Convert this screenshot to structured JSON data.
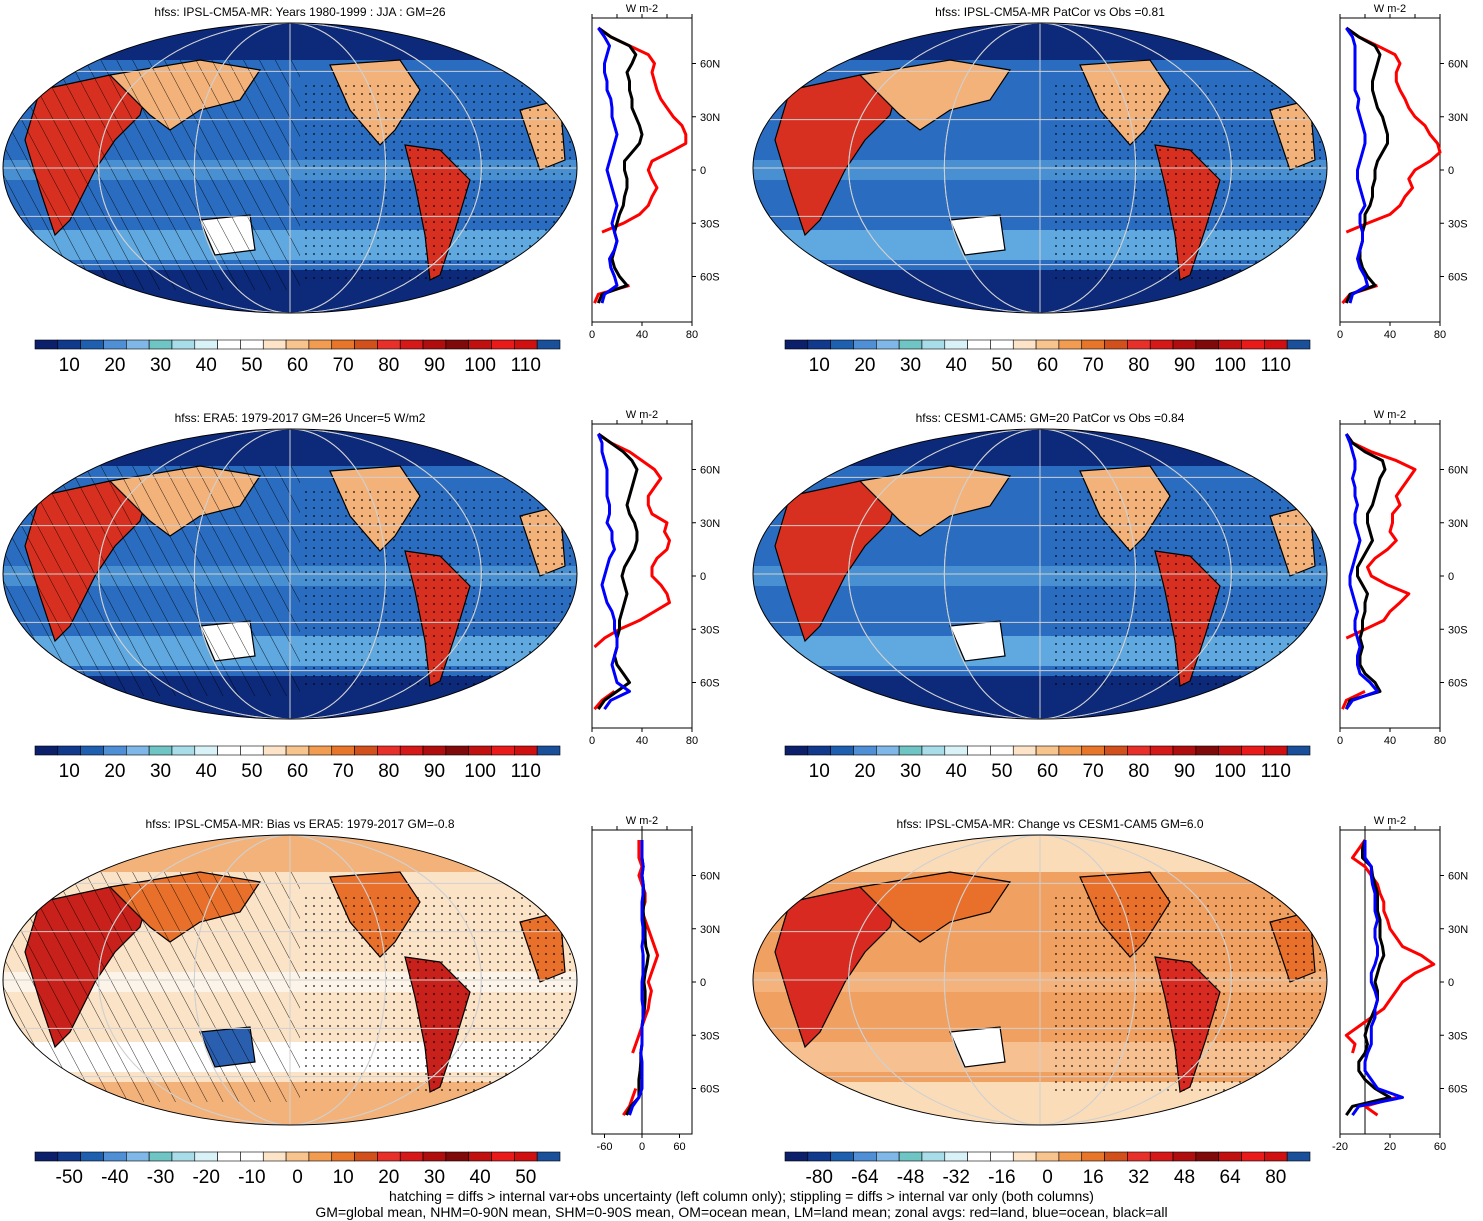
{
  "panels": [
    {
      "title": "hfss: IPSL-CM5A-MR: Years 1980-1999 : JJA : GM=26",
      "theme": "abs",
      "hatch": true,
      "stipple": true,
      "scale": "abs"
    },
    {
      "title": "hfss: IPSL-CM5A-MR PatCor vs Obs =0.81",
      "theme": "abs",
      "hatch": false,
      "stipple": true,
      "scale": "abs"
    },
    {
      "title": "hfss: ERA5: 1979-2017 GM=26 Uncer=5 W/m2",
      "theme": "abs",
      "hatch": true,
      "stipple": true,
      "scale": "abs"
    },
    {
      "title": "hfss: CESM1-CAM5: GM=20 PatCor vs Obs =0.84",
      "theme": "abs",
      "hatch": false,
      "stipple": true,
      "scale": "abs"
    },
    {
      "title": "hfss: IPSL-CM5A-MR: Bias vs ERA5: 1979-2017 GM=-0.8",
      "theme": "bias",
      "hatch": true,
      "stipple": true,
      "scale": "bias"
    },
    {
      "title": "hfss: IPSL-CM5A-MR: Change vs CESM1-CAM5 GM=6.0",
      "theme": "change",
      "hatch": false,
      "stipple": true,
      "scale": "change"
    }
  ],
  "colorbars": {
    "abs": {
      "labels": [
        "10",
        "20",
        "30",
        "40",
        "50",
        "60",
        "70",
        "80",
        "90",
        "100",
        "110"
      ]
    },
    "bias": {
      "labels": [
        "-50",
        "-40",
        "-30",
        "-20",
        "-10",
        "0",
        "10",
        "20",
        "30",
        "40",
        "50"
      ]
    },
    "change": {
      "labels": [
        "-80",
        "-64",
        "-48",
        "-32",
        "-16",
        "0",
        "16",
        "32",
        "48",
        "64",
        "80"
      ]
    },
    "colors": [
      "#0b1f6b",
      "#123a8c",
      "#1f5fb0",
      "#4f8fd6",
      "#7fb8e8",
      "#6fc4c4",
      "#a8dce8",
      "#d9f2f7",
      "#ffffff",
      "#ffffff",
      "#fde4c8",
      "#f8c48e",
      "#f29c52",
      "#e8762a",
      "#d2501c",
      "#e8302a",
      "#d51818",
      "#b00e0e",
      "#800a0a",
      "#c01010",
      "#e81a1a",
      "#d01010",
      "#1a4f9a"
    ]
  },
  "profile_units": "W m-2",
  "lat_labels": [
    "60N",
    "30N",
    "0",
    "30S",
    "60S"
  ],
  "profile_axes": {
    "abs": {
      "ticks": [
        "0",
        "40",
        "80"
      ],
      "xlim": [
        0,
        80
      ]
    },
    "bias": {
      "ticks": [
        "-60",
        "0",
        "60"
      ],
      "xlim": [
        -80,
        80
      ]
    },
    "change": {
      "ticks": [
        "-20",
        "20",
        "60"
      ],
      "xlim": [
        -20,
        60
      ]
    }
  },
  "chart_data": {
    "type": "line",
    "y_axis": "latitude (deg)",
    "x_axis": "zonal mean hfss (W m-2)",
    "lat": [
      -75,
      -70,
      -65,
      -60,
      -55,
      -50,
      -45,
      -40,
      -35,
      -30,
      -25,
      -20,
      -15,
      -10,
      -5,
      0,
      5,
      10,
      15,
      20,
      25,
      30,
      35,
      40,
      45,
      50,
      55,
      60,
      65,
      70,
      75,
      80
    ],
    "series_legend": {
      "land": "red",
      "ocean": "blue",
      "all": "black"
    },
    "profiles": [
      {
        "land": [
          2,
          5,
          30,
          null,
          null,
          null,
          null,
          null,
          8,
          25,
          38,
          45,
          48,
          52,
          48,
          45,
          48,
          62,
          75,
          75,
          72,
          65,
          60,
          55,
          52,
          50,
          48,
          50,
          45,
          30,
          15,
          5
        ],
        "ocean": [
          8,
          10,
          20,
          18,
          15,
          14,
          18,
          20,
          18,
          16,
          18,
          20,
          18,
          16,
          14,
          12,
          14,
          16,
          18,
          20,
          18,
          16,
          16,
          15,
          12,
          12,
          10,
          10,
          12,
          14,
          10,
          5
        ],
        "all": [
          5,
          8,
          28,
          22,
          18,
          16,
          18,
          20,
          18,
          20,
          22,
          25,
          26,
          28,
          28,
          26,
          26,
          32,
          38,
          40,
          38,
          35,
          32,
          32,
          30,
          30,
          28,
          32,
          35,
          30,
          15,
          5
        ]
      },
      {
        "land": [
          2,
          8,
          30,
          null,
          null,
          null,
          null,
          null,
          5,
          22,
          40,
          48,
          52,
          58,
          55,
          60,
          72,
          80,
          78,
          72,
          68,
          60,
          55,
          52,
          48,
          45,
          45,
          48,
          44,
          30,
          15,
          5
        ],
        "ocean": [
          8,
          10,
          22,
          20,
          16,
          14,
          16,
          18,
          18,
          16,
          16,
          20,
          18,
          16,
          14,
          14,
          16,
          18,
          20,
          20,
          18,
          16,
          14,
          15,
          12,
          12,
          12,
          12,
          12,
          12,
          10,
          5
        ],
        "all": [
          5,
          8,
          28,
          22,
          18,
          16,
          16,
          18,
          18,
          20,
          20,
          24,
          26,
          26,
          28,
          28,
          30,
          34,
          38,
          38,
          36,
          34,
          30,
          28,
          26,
          26,
          28,
          30,
          32,
          28,
          15,
          5
        ]
      },
      {
        "land": [
          2,
          8,
          18,
          null,
          null,
          null,
          null,
          2,
          10,
          22,
          38,
          50,
          62,
          60,
          55,
          48,
          48,
          52,
          60,
          62,
          58,
          60,
          48,
          45,
          45,
          50,
          55,
          50,
          40,
          30,
          15,
          5
        ],
        "ocean": [
          10,
          15,
          30,
          20,
          18,
          16,
          18,
          20,
          20,
          18,
          18,
          16,
          12,
          10,
          8,
          10,
          12,
          14,
          18,
          16,
          16,
          12,
          14,
          14,
          12,
          12,
          12,
          12,
          10,
          8,
          8,
          5
        ],
        "all": [
          5,
          10,
          20,
          30,
          25,
          20,
          18,
          20,
          20,
          22,
          22,
          24,
          26,
          28,
          26,
          24,
          26,
          30,
          34,
          36,
          36,
          34,
          30,
          28,
          30,
          32,
          34,
          36,
          32,
          25,
          15,
          5
        ]
      },
      {
        "land": [
          2,
          5,
          20,
          null,
          null,
          null,
          null,
          null,
          5,
          20,
          35,
          40,
          48,
          55,
          38,
          25,
          22,
          28,
          38,
          45,
          40,
          42,
          42,
          48,
          45,
          50,
          55,
          60,
          45,
          25,
          10,
          5
        ],
        "ocean": [
          5,
          10,
          30,
          24,
          16,
          14,
          14,
          16,
          14,
          12,
          12,
          14,
          12,
          10,
          8,
          8,
          10,
          12,
          14,
          16,
          14,
          12,
          12,
          14,
          12,
          12,
          10,
          12,
          12,
          10,
          8,
          5
        ],
        "all": [
          5,
          8,
          32,
          28,
          20,
          16,
          16,
          18,
          16,
          18,
          18,
          20,
          20,
          22,
          18,
          14,
          14,
          18,
          22,
          26,
          24,
          22,
          22,
          26,
          28,
          30,
          32,
          36,
          34,
          20,
          10,
          5
        ]
      },
      {
        "land": [
          -30,
          -20,
          -15,
          -10,
          null,
          null,
          null,
          -15,
          -10,
          -5,
          0,
          5,
          10,
          12,
          15,
          10,
          15,
          20,
          25,
          20,
          15,
          10,
          5,
          0,
          5,
          5,
          0,
          -5,
          0,
          -5,
          -5,
          -5
        ],
        "ocean": [
          -20,
          -15,
          -5,
          0,
          0,
          0,
          0,
          -2,
          0,
          0,
          0,
          2,
          2,
          0,
          0,
          0,
          2,
          2,
          2,
          0,
          2,
          2,
          0,
          0,
          0,
          2,
          2,
          0,
          2,
          0,
          0,
          0
        ],
        "all": [
          -25,
          -18,
          -5,
          -5,
          -5,
          -3,
          -2,
          -2,
          0,
          0,
          0,
          2,
          4,
          5,
          5,
          3,
          5,
          8,
          10,
          6,
          5,
          5,
          3,
          2,
          3,
          3,
          2,
          0,
          2,
          0,
          0,
          0
        ]
      },
      {
        "land": [
          10,
          0,
          25,
          null,
          null,
          null,
          null,
          -10,
          -8,
          -15,
          -5,
          5,
          15,
          20,
          25,
          30,
          40,
          55,
          45,
          30,
          25,
          20,
          18,
          15,
          15,
          12,
          10,
          5,
          0,
          -10,
          -5,
          0
        ],
        "ocean": [
          -10,
          -5,
          30,
          10,
          5,
          0,
          0,
          2,
          5,
          5,
          5,
          8,
          8,
          10,
          8,
          5,
          5,
          8,
          10,
          10,
          8,
          8,
          10,
          8,
          8,
          8,
          6,
          5,
          5,
          0,
          0,
          0
        ],
        "all": [
          -15,
          -10,
          20,
          8,
          0,
          -5,
          -5,
          0,
          2,
          0,
          2,
          5,
          8,
          10,
          10,
          8,
          10,
          12,
          15,
          14,
          12,
          12,
          12,
          10,
          10,
          10,
          8,
          6,
          5,
          -2,
          -2,
          0
        ]
      }
    ]
  },
  "footer": {
    "line1": "hatching = diffs > internal var+obs uncertainty (left column only); stippling = diffs > internal var only (both columns)",
    "line2": "GM=global mean, NHM=0-90N mean, SHM=0-90S mean, OM=ocean mean, LM=land mean; zonal avgs: red=land, blue=ocean, black=all"
  }
}
